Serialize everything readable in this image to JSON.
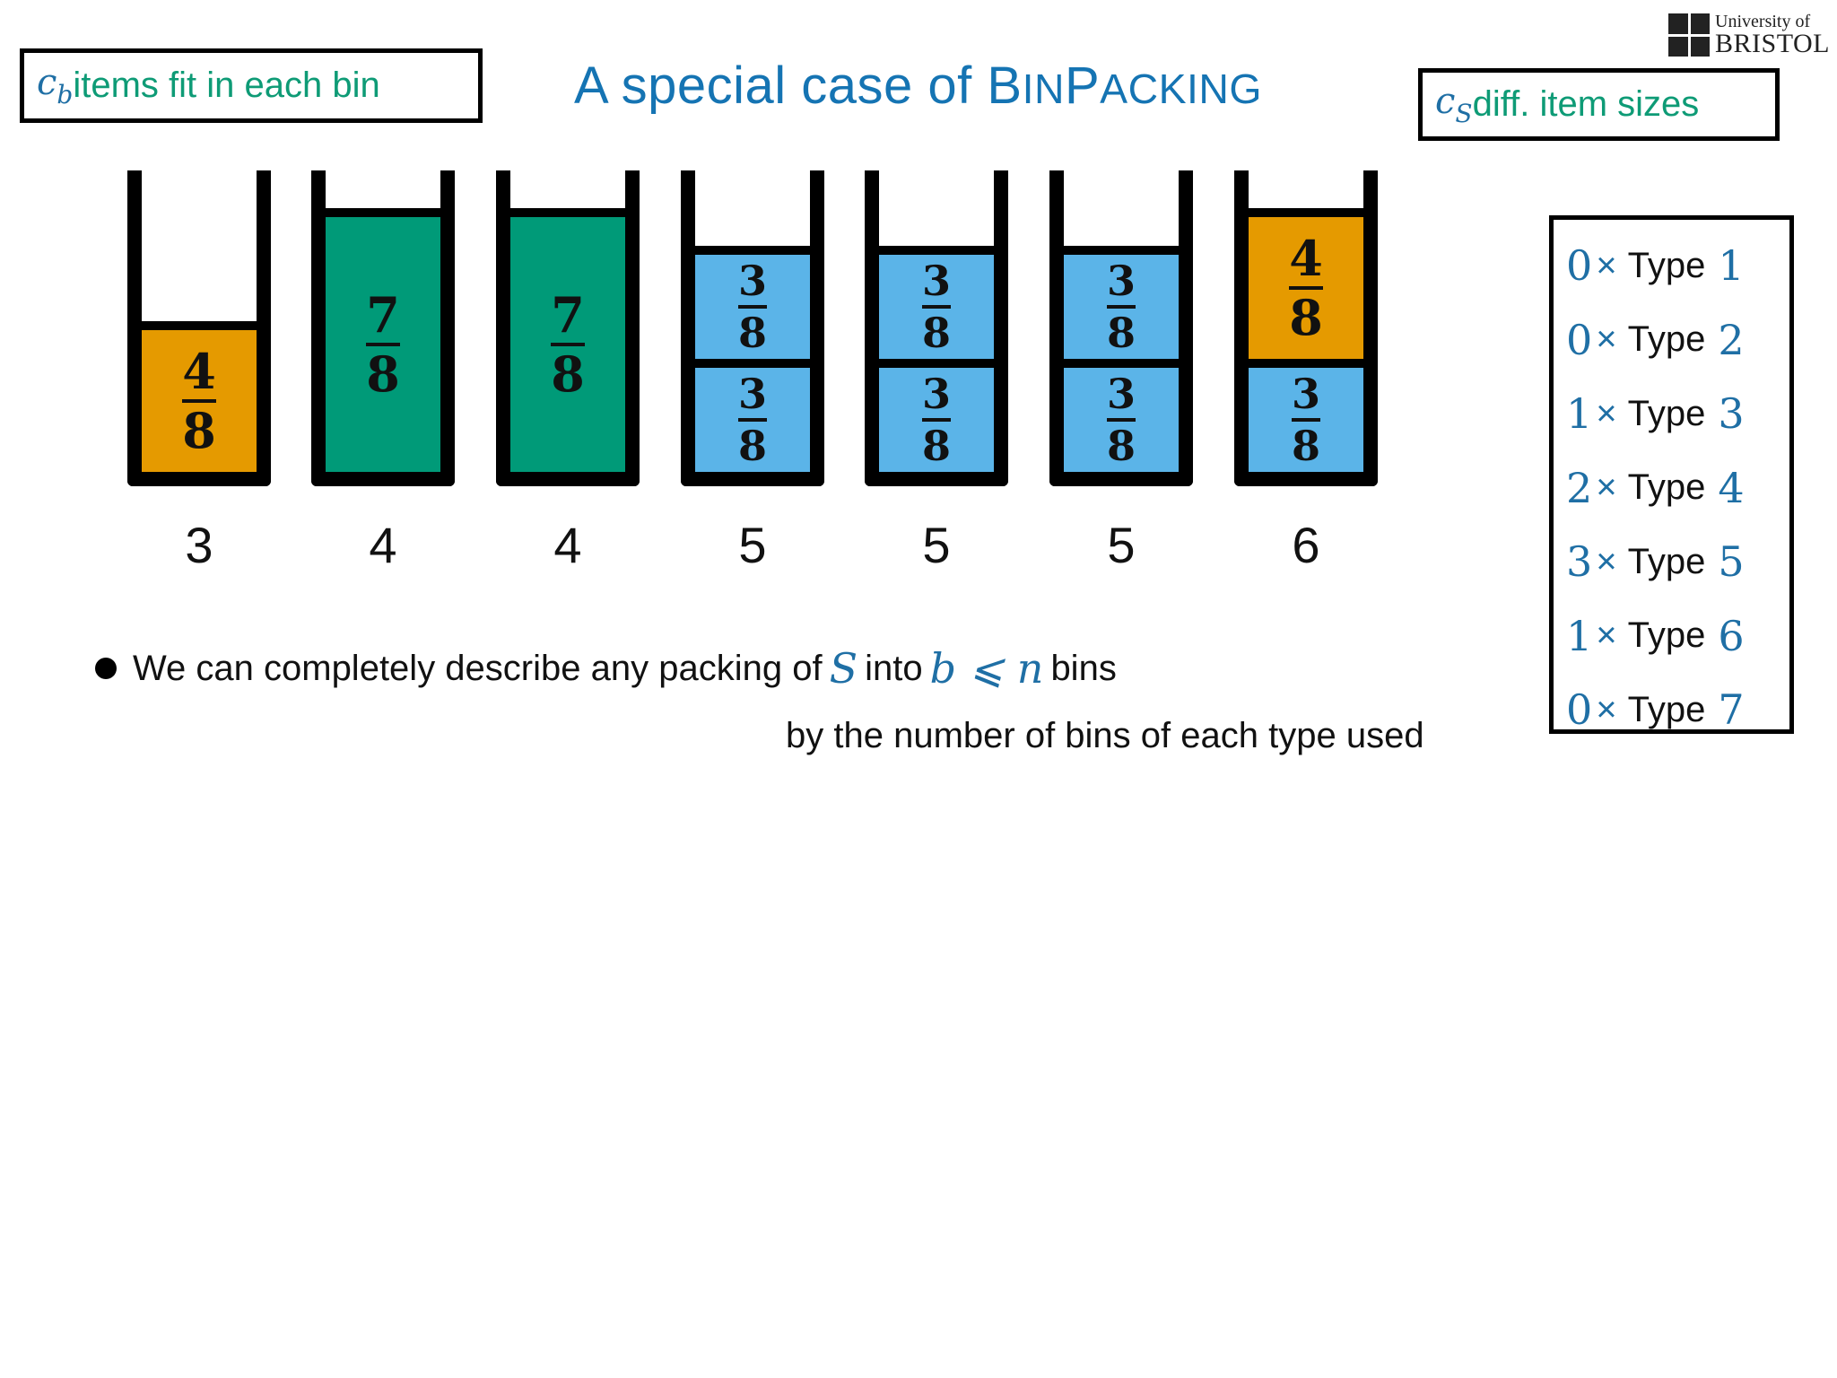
{
  "title": {
    "main": "A special case of ",
    "b1": "B",
    "b2": "IN",
    "p1": "P",
    "p2": "ACKING"
  },
  "box_left": {
    "math": "c",
    "sub": "b",
    "text": " items fit in each bin"
  },
  "box_right": {
    "math": "c",
    "sub": "S",
    "text": " diff. item sizes"
  },
  "logo": {
    "line1": "University of",
    "line2": "BRISTOL"
  },
  "colors": {
    "orange": "#e59a00",
    "green": "#009a78",
    "blue": "#5bb4e8",
    "accent": "#1574b3",
    "box_text": "#0e9b76"
  },
  "bins": [
    {
      "label": "3",
      "items": [
        {
          "num": "4",
          "den": "8",
          "color": "orange"
        }
      ]
    },
    {
      "label": "4",
      "items": [
        {
          "num": "7",
          "den": "8",
          "color": "green"
        }
      ]
    },
    {
      "label": "4",
      "items": [
        {
          "num": "7",
          "den": "8",
          "color": "green"
        }
      ]
    },
    {
      "label": "5",
      "items": [
        {
          "num": "3",
          "den": "8",
          "color": "blue"
        },
        {
          "num": "3",
          "den": "8",
          "color": "blue"
        }
      ]
    },
    {
      "label": "5",
      "items": [
        {
          "num": "3",
          "den": "8",
          "color": "blue"
        },
        {
          "num": "3",
          "den": "8",
          "color": "blue"
        }
      ]
    },
    {
      "label": "5",
      "items": [
        {
          "num": "3",
          "den": "8",
          "color": "blue"
        },
        {
          "num": "3",
          "den": "8",
          "color": "blue"
        }
      ]
    },
    {
      "label": "6",
      "items": [
        {
          "num": "3",
          "den": "8",
          "color": "blue"
        },
        {
          "num": "4",
          "den": "8",
          "color": "orange"
        }
      ]
    }
  ],
  "types": [
    {
      "count": "0",
      "times": "×",
      "word": "Type",
      "index": "1"
    },
    {
      "count": "0",
      "times": "×",
      "word": "Type",
      "index": "2"
    },
    {
      "count": "1",
      "times": "×",
      "word": "Type",
      "index": "3"
    },
    {
      "count": "2",
      "times": "×",
      "word": "Type",
      "index": "4"
    },
    {
      "count": "3",
      "times": "×",
      "word": "Type",
      "index": "5"
    },
    {
      "count": "1",
      "times": "×",
      "word": "Type",
      "index": "6"
    },
    {
      "count": "0",
      "times": "×",
      "word": "Type",
      "index": "7"
    }
  ],
  "bullet": {
    "t1": "We can completely describe any packing of",
    "m1": "S",
    "t2": "into",
    "m2": "b ⩽ n",
    "t3": "bins",
    "line2": "by the number of bins of each type used"
  }
}
